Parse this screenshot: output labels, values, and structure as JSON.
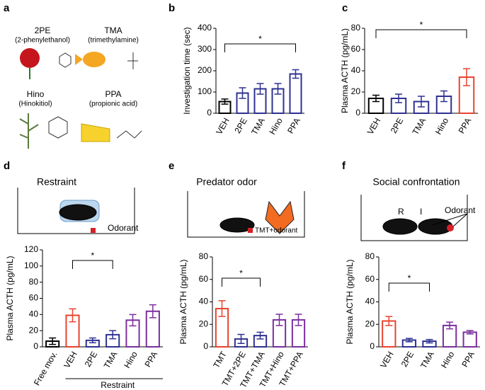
{
  "panel_a": {
    "panel_label": "a",
    "items": [
      {
        "name": "2PE",
        "full": "(2-phenylethanol)"
      },
      {
        "name": "TMA",
        "full": "(trimethylamine)"
      },
      {
        "name": "Hino",
        "full": "(Hinokitiol)"
      },
      {
        "name": "PPA",
        "full": "(propionic acid)"
      }
    ]
  },
  "chart_data": [
    {
      "type": "bar",
      "panel_label": "b",
      "y_label": "Investigation time (sec)",
      "significance": "*",
      "categories": [
        "VEH",
        "2PE",
        "TMA",
        "Hino",
        "PPA"
      ],
      "values": [
        55,
        95,
        115,
        115,
        185
      ],
      "errors": [
        12,
        25,
        25,
        25,
        20
      ],
      "colors": [
        "#000000",
        "#2e3192",
        "#2e3192",
        "#2e3192",
        "#2e3192"
      ],
      "ylim": [
        0,
        400
      ],
      "yticks": [
        0,
        100,
        200,
        300,
        400
      ]
    },
    {
      "type": "bar",
      "panel_label": "c",
      "y_label": "Plasma ACTH (pg/mL)",
      "significance": "*",
      "categories": [
        "VEH",
        "2PE",
        "TMA",
        "Hino",
        "PPA"
      ],
      "values": [
        14,
        14,
        11,
        16,
        34
      ],
      "errors": [
        3,
        4,
        5,
        5,
        8
      ],
      "colors": [
        "#000000",
        "#2e3192",
        "#2e3192",
        "#2e3192",
        "#e8432e"
      ],
      "ylim": [
        0,
        80
      ],
      "yticks": [
        0,
        20,
        40,
        60,
        80
      ]
    },
    {
      "type": "bar",
      "panel_label": "d",
      "title": "Restraint",
      "annotation": "Odorant",
      "group_label": "Restraint",
      "y_label": "Plasma ACTH (pg/mL)",
      "significance": "*",
      "categories": [
        "Free mov.",
        "VEH",
        "2PE",
        "TMA",
        "Hino",
        "PPA"
      ],
      "values": [
        7,
        39,
        8,
        15,
        33,
        44
      ],
      "errors": [
        4,
        8,
        3,
        5,
        7,
        8
      ],
      "colors": [
        "#000000",
        "#e8432e",
        "#2e3192",
        "#2e3192",
        "#7b2f9e",
        "#7b2f9e"
      ],
      "ylim": [
        0,
        120
      ],
      "yticks": [
        0,
        20,
        40,
        60,
        80,
        100,
        120
      ]
    },
    {
      "type": "bar",
      "panel_label": "e",
      "title": "Predator odor",
      "annotation": "TMT+odorant",
      "y_label": "Plasma ACTH (pg/mL)",
      "significance": "*",
      "categories": [
        "TMT",
        "TMT+2PE",
        "TMT+TMA",
        "TMT+Hino",
        "TMT+PPA"
      ],
      "values": [
        34,
        7,
        10,
        24,
        24
      ],
      "errors": [
        7,
        4,
        3,
        5,
        5
      ],
      "colors": [
        "#e8432e",
        "#2e3192",
        "#2e3192",
        "#7b2f9e",
        "#7b2f9e"
      ],
      "ylim": [
        0,
        80
      ],
      "yticks": [
        0,
        20,
        40,
        60,
        80
      ]
    },
    {
      "type": "bar",
      "panel_label": "f",
      "title": "Social confrontation",
      "annotation": "Odorant",
      "resident_label": "R",
      "intruder_label": "I",
      "y_label": "Plasma ACTH (pg/mL)",
      "significance": "*",
      "categories": [
        "VEH",
        "2PE",
        "TMA",
        "Hino",
        "PPA"
      ],
      "values": [
        23,
        6,
        5,
        19,
        13
      ],
      "errors": [
        4,
        1.5,
        1.5,
        3,
        1.5
      ],
      "colors": [
        "#e8432e",
        "#2e3192",
        "#2e3192",
        "#7b2f9e",
        "#7b2f9e"
      ],
      "ylim": [
        0,
        80
      ],
      "yticks": [
        0,
        20,
        40,
        60,
        80
      ]
    }
  ]
}
